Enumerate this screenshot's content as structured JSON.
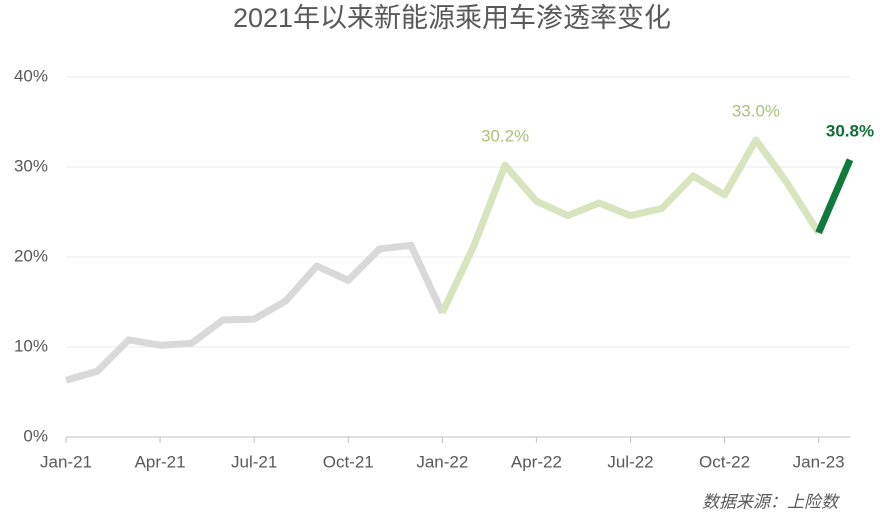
{
  "chart_data": {
    "type": "line",
    "title": "2021年以来新能源乘用车渗透率变化",
    "source": "数据来源：上险数",
    "categories": [
      "Jan-21",
      null,
      null,
      "Apr-21",
      null,
      null,
      "Jul-21",
      null,
      null,
      "Oct-21",
      null,
      null,
      "Jan-22",
      null,
      null,
      "Apr-22",
      null,
      null,
      "Jul-22",
      null,
      null,
      "Oct-22",
      null,
      null,
      "Jan-23",
      null
    ],
    "series": [
      {
        "color": "#d9d9d9",
        "values": [
          6.3,
          7.3,
          10.8,
          10.2,
          10.4,
          13.0,
          13.1,
          15.1,
          19.0,
          17.4,
          20.9,
          21.3,
          13.8,
          null,
          null,
          null,
          null,
          null,
          null,
          null,
          null,
          null,
          null,
          null,
          null,
          null
        ]
      },
      {
        "color": "#d7e4bd",
        "label_color": "#a8c27a",
        "values": [
          null,
          null,
          null,
          null,
          null,
          null,
          null,
          null,
          null,
          null,
          null,
          null,
          13.8,
          21.2,
          30.2,
          26.2,
          24.6,
          26.0,
          24.6,
          25.4,
          29.0,
          26.9,
          33.0,
          28.2,
          22.7,
          null
        ],
        "value_labels": [
          null,
          null,
          null,
          null,
          null,
          null,
          null,
          null,
          null,
          null,
          null,
          null,
          null,
          null,
          "30.2%",
          null,
          null,
          null,
          null,
          null,
          null,
          null,
          "33.0%",
          null,
          null,
          null
        ]
      },
      {
        "color": "#0f7a3b",
        "label_color": "#0f6e35",
        "label_bold": true,
        "values": [
          null,
          null,
          null,
          null,
          null,
          null,
          null,
          null,
          null,
          null,
          null,
          null,
          null,
          null,
          null,
          null,
          null,
          null,
          null,
          null,
          null,
          null,
          null,
          null,
          22.7,
          30.8
        ],
        "value_labels": [
          null,
          null,
          null,
          null,
          null,
          null,
          null,
          null,
          null,
          null,
          null,
          null,
          null,
          null,
          null,
          null,
          null,
          null,
          null,
          null,
          null,
          null,
          null,
          null,
          null,
          "30.8%"
        ]
      }
    ],
    "ylim": [
      0,
      40
    ],
    "yticks": [
      {
        "value": 0,
        "label": "0%"
      },
      {
        "value": 10,
        "label": "10%"
      },
      {
        "value": 20,
        "label": "20%"
      },
      {
        "value": 30,
        "label": "30%"
      },
      {
        "value": 40,
        "label": "40%"
      }
    ],
    "grid": true
  }
}
